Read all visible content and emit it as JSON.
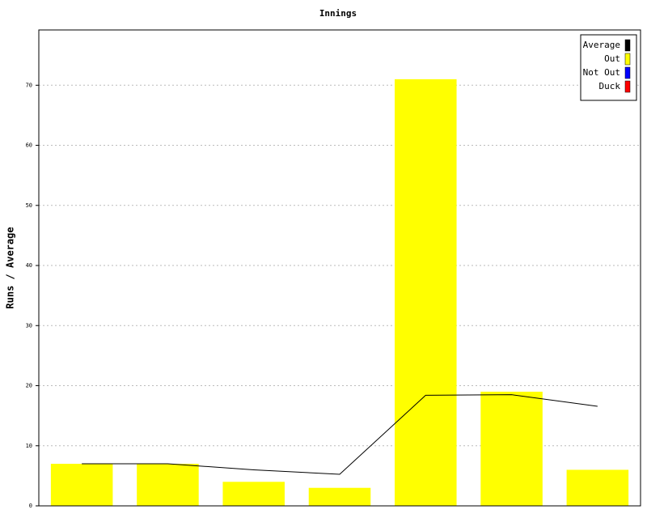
{
  "chart_data": {
    "type": "bar",
    "title": "Innings",
    "y_label": "Runs / Average",
    "categories": [
      null,
      null,
      null,
      null,
      null,
      null,
      null
    ],
    "series": [
      {
        "name": "Average",
        "type": "line",
        "color": "#000000",
        "values": [
          7,
          7,
          6,
          5.25,
          18.4,
          18.5,
          16.57
        ]
      },
      {
        "name": "Out",
        "color": "#ffff00",
        "values": [
          7,
          7,
          4,
          3,
          71,
          19,
          6
        ]
      },
      {
        "name": "Not Out",
        "color": "#0000ff",
        "values": [
          null,
          null,
          null,
          null,
          null,
          null,
          null
        ]
      },
      {
        "name": "Duck",
        "color": "#ff0000",
        "values": [
          null,
          null,
          null,
          null,
          null,
          null,
          null
        ]
      }
    ],
    "ylim": [
      0,
      79.2
    ],
    "yticks": [
      0,
      10,
      20,
      30,
      40,
      50,
      60,
      70
    ],
    "grid": true,
    "legend": "top-right"
  }
}
